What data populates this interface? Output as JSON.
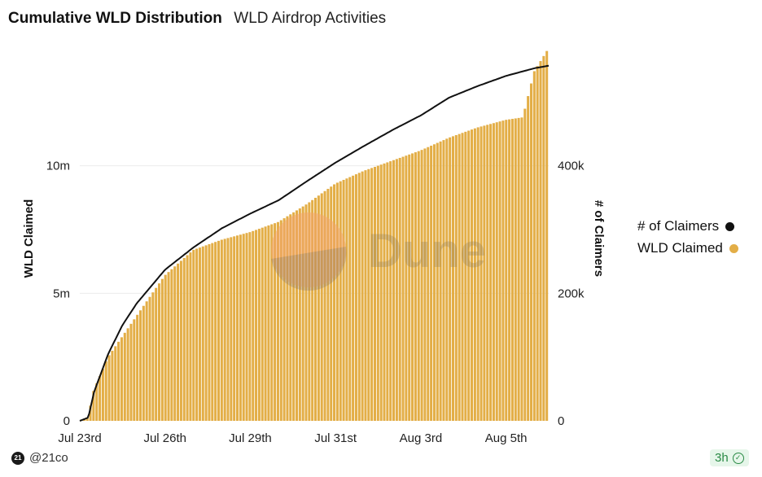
{
  "header": {
    "title": "Cumulative WLD Distribution",
    "subtitle": "WLD Airdrop Activities"
  },
  "legend": [
    {
      "label": "# of Claimers",
      "color": "#111111"
    },
    {
      "label": "WLD Claimed",
      "color": "#E3AE47"
    }
  ],
  "footer": {
    "author": "@21co",
    "logo_text": "21",
    "refresh": "3h"
  },
  "watermark": "Dune",
  "chart_data": {
    "type": "bar+line",
    "title": "Cumulative WLD Distribution",
    "xlabel": "",
    "ylabel_left": "WLD Claimed",
    "ylabel_right": "# of Claimers",
    "left_axis": {
      "ylim": [
        0,
        15000000
      ],
      "ticks": [
        0,
        5000000,
        10000000
      ],
      "tick_labels": [
        "0",
        "5m",
        "10m"
      ]
    },
    "right_axis": {
      "ylim": [
        0,
        600000
      ],
      "ticks": [
        0,
        200000,
        400000
      ],
      "tick_labels": [
        "0",
        "200k",
        "400k"
      ]
    },
    "x_range_days": [
      0,
      16.5
    ],
    "x_ticks": [
      {
        "day": 0,
        "label": "Jul 23rd"
      },
      {
        "day": 3,
        "label": "Jul 26th"
      },
      {
        "day": 6,
        "label": "Jul 29th"
      },
      {
        "day": 9,
        "label": "Jul 31st"
      },
      {
        "day": 12,
        "label": "Aug 3rd"
      },
      {
        "day": 15,
        "label": "Aug 5th"
      }
    ],
    "grid": true,
    "series": [
      {
        "name": "WLD Claimed",
        "axis": "left",
        "type": "bar",
        "color": "#E3AE47",
        "points": [
          [
            0,
            0
          ],
          [
            0.3,
            150000
          ],
          [
            0.5,
            1200000
          ],
          [
            1,
            2500000
          ],
          [
            1.5,
            3300000
          ],
          [
            2,
            4100000
          ],
          [
            3,
            5700000
          ],
          [
            4,
            6700000
          ],
          [
            5,
            7100000
          ],
          [
            6,
            7400000
          ],
          [
            7,
            7800000
          ],
          [
            8,
            8500000
          ],
          [
            9,
            9300000
          ],
          [
            10,
            9800000
          ],
          [
            11,
            10200000
          ],
          [
            12,
            10600000
          ],
          [
            13,
            11100000
          ],
          [
            14,
            11500000
          ],
          [
            15,
            11800000
          ],
          [
            15.6,
            11900000
          ],
          [
            16,
            13700000
          ],
          [
            16.5,
            14600000
          ]
        ]
      },
      {
        "name": "# of Claimers",
        "axis": "right",
        "type": "line",
        "color": "#111111",
        "points": [
          [
            0,
            0
          ],
          [
            0.3,
            5000
          ],
          [
            0.5,
            45000
          ],
          [
            1,
            105000
          ],
          [
            1.5,
            150000
          ],
          [
            2,
            184000
          ],
          [
            3,
            237000
          ],
          [
            4,
            272000
          ],
          [
            5,
            302000
          ],
          [
            6,
            325000
          ],
          [
            7,
            346000
          ],
          [
            8,
            376000
          ],
          [
            9,
            405000
          ],
          [
            10,
            431000
          ],
          [
            11,
            456000
          ],
          [
            12,
            479000
          ],
          [
            13,
            507000
          ],
          [
            14,
            525000
          ],
          [
            15,
            541000
          ],
          [
            16,
            553000
          ],
          [
            16.5,
            557000
          ]
        ]
      }
    ]
  }
}
